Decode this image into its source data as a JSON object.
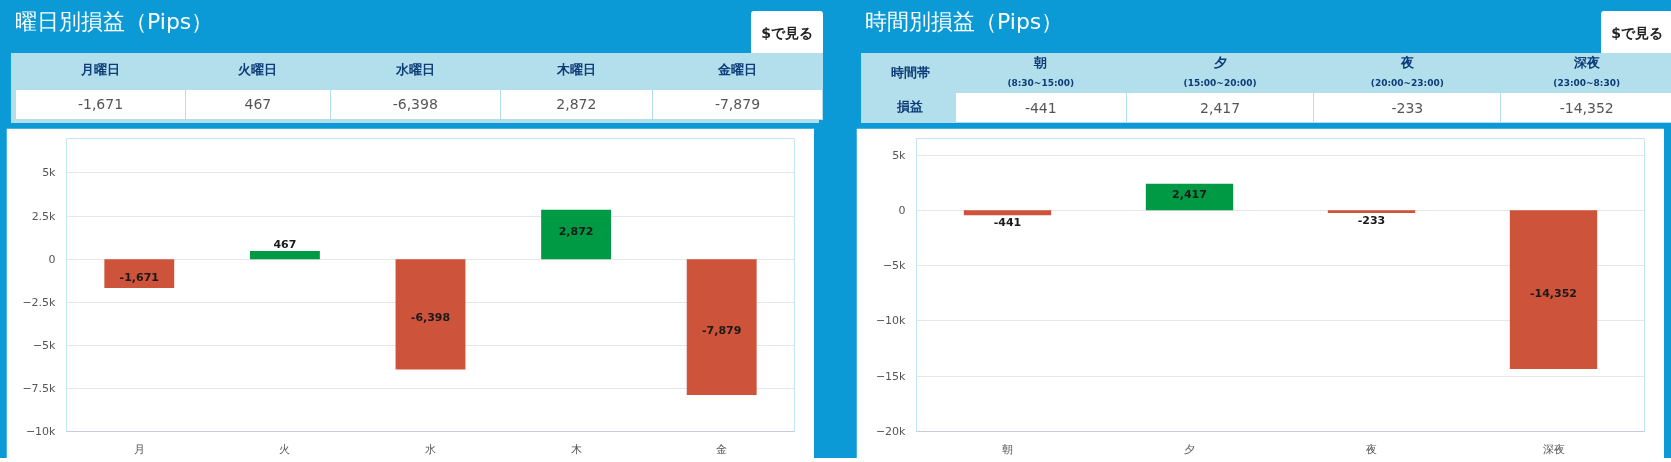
{
  "chart_data": [
    {
      "type": "bar",
      "title": "曜日別損益（Pips）",
      "categories": [
        "月",
        "火",
        "水",
        "木",
        "金"
      ],
      "values": [
        -1671,
        467,
        -6398,
        2872,
        -7879
      ],
      "colors": [
        "#cd533b",
        "#009a44",
        "#cd533b",
        "#009a44",
        "#cd533b"
      ],
      "ylim": [
        -10000,
        7000
      ],
      "yticks": [
        {
          "value": -10000,
          "label": "−10k"
        },
        {
          "value": -7500,
          "label": "−7.5k"
        },
        {
          "value": -5000,
          "label": "−5k"
        },
        {
          "value": -2500,
          "label": "−2.5k"
        },
        0,
        {
          "value": 2500,
          "label": "2.5k"
        },
        {
          "value": 5000,
          "label": "5k"
        }
      ],
      "grid": "y",
      "value_labels": [
        "-1,671",
        "467",
        "-6,398",
        "2,872",
        "-7,879"
      ],
      "annotations": [
        "$で見る",
        "月曜日",
        "火曜日",
        "水曜日",
        "木曜日",
        "金曜日"
      ]
    },
    {
      "type": "bar",
      "title": "時間別損益（Pips）",
      "categories": [
        "朝",
        "夕",
        "夜",
        "深夜"
      ],
      "values": [
        -441,
        2417,
        -233,
        -14352
      ],
      "colors": [
        "#cd533b",
        "#009a44",
        "#cd533b",
        "#cd533b"
      ],
      "ylim": [
        -20000,
        6500
      ],
      "yticks": [
        {
          "value": -20000,
          "label": "−20k"
        },
        {
          "value": -15000,
          "label": "−15k"
        },
        {
          "value": -10000,
          "label": "−10k"
        },
        {
          "value": -5000,
          "label": "−5k"
        },
        0,
        {
          "value": 5000,
          "label": "5k"
        }
      ],
      "grid": "y",
      "value_labels": [
        "-441",
        "2,417",
        "-233",
        "-14,352"
      ],
      "annotations": [
        "$で見る",
        "時間帯",
        "損益",
        "朝",
        "(8:30~15:00)",
        "夕",
        "(15:00~20:00)",
        "夜",
        "(20:00~23:00)",
        "深夜",
        "(23:00~8:30)"
      ]
    }
  ]
}
